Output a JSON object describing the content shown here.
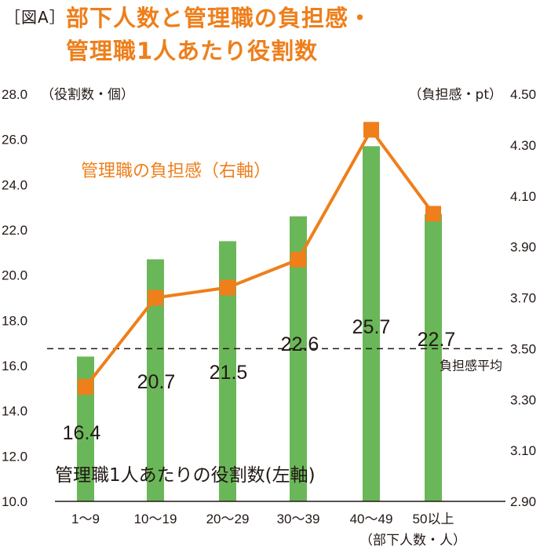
{
  "header": {
    "label": "［図A］",
    "title_line1": "部下人数と管理職の負担感・",
    "title_line2": "管理職1人あたり役割数"
  },
  "chart_data": {
    "type": "bar",
    "categories": [
      "1〜9",
      "10〜19",
      "20〜29",
      "30〜39",
      "40〜49",
      "50以上"
    ],
    "xlabel": "（部下人数・人）",
    "series": [
      {
        "name": "管理職1人あたりの役割数(左軸)",
        "type": "bar",
        "axis": "left",
        "values": [
          16.4,
          20.7,
          21.5,
          22.6,
          25.7,
          22.7
        ],
        "value_labels": [
          "16.4",
          "20.7",
          "21.5",
          "22.6",
          "25.7",
          "22.7"
        ],
        "color": "#6ab759"
      },
      {
        "name": "管理職の負担感（右軸）",
        "type": "line",
        "axis": "right",
        "values": [
          3.35,
          3.7,
          3.74,
          3.85,
          4.36,
          4.03
        ],
        "color": "#ee7f1b"
      }
    ],
    "left_axis": {
      "label": "（役割数・個）",
      "ylim": [
        10.0,
        28.0
      ],
      "ticks": [
        "10.0",
        "12.0",
        "14.0",
        "16.0",
        "18.0",
        "20.0",
        "22.0",
        "24.0",
        "26.0",
        "28.0"
      ]
    },
    "right_axis": {
      "label": "（負担感・pt）",
      "ylim": [
        2.9,
        4.5
      ],
      "ticks": [
        "2.90",
        "3.10",
        "3.30",
        "3.50",
        "3.70",
        "3.90",
        "4.10",
        "4.30",
        "4.50"
      ]
    },
    "reference_line": {
      "axis": "right",
      "value": 3.5,
      "label": "負担感平均"
    },
    "grid": false
  }
}
